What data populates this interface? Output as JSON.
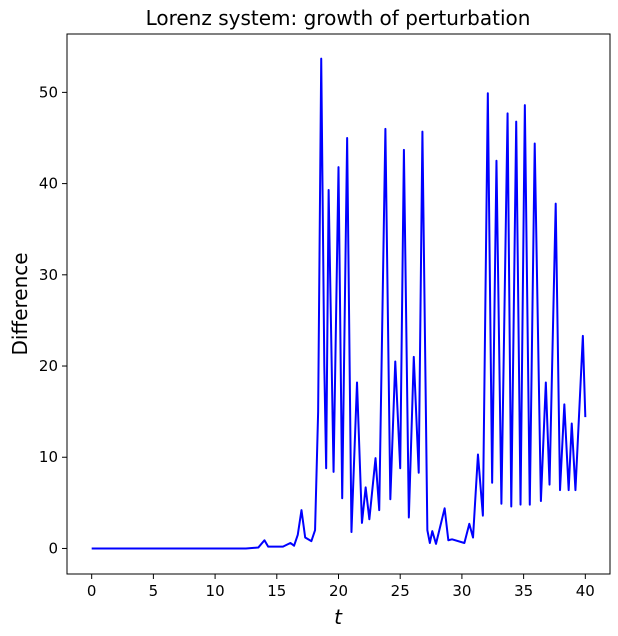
{
  "chart_data": {
    "type": "line",
    "title": "Lorenz system: growth of perturbation",
    "xlabel": "t",
    "ylabel": "Difference",
    "color": "#0000ff",
    "x": [
      0,
      12.5,
      13.5,
      14.0,
      14.3,
      15.5,
      16.1,
      16.4,
      16.7,
      17.0,
      17.3,
      17.8,
      18.1,
      18.35,
      18.6,
      18.85,
      19.0,
      19.2,
      19.45,
      19.6,
      20.0,
      20.3,
      20.7,
      21.05,
      21.5,
      21.9,
      22.2,
      22.5,
      23.0,
      23.3,
      23.8,
      24.2,
      24.6,
      25.0,
      25.3,
      25.7,
      26.1,
      26.5,
      26.8,
      27.2,
      27.4,
      27.6,
      27.9,
      28.6,
      28.9,
      29.2,
      30.2,
      30.6,
      30.9,
      31.3,
      31.7,
      32.1,
      32.45,
      32.8,
      33.2,
      33.7,
      34.0,
      34.4,
      34.75,
      35.1,
      35.5,
      35.9,
      36.4,
      36.8,
      37.1,
      37.6,
      37.95,
      38.3,
      38.65,
      38.9,
      39.2,
      39.8,
      40.0
    ],
    "values": [
      0,
      0,
      0.1,
      0.9,
      0.2,
      0.2,
      0.6,
      0.3,
      1.5,
      4.2,
      1.2,
      0.8,
      2,
      15,
      53.7,
      20,
      8.8,
      39.3,
      20,
      8.4,
      41.8,
      5.5,
      45.0,
      1.8,
      18.2,
      2.8,
      6.7,
      3.2,
      9.9,
      4.2,
      46.0,
      5.4,
      20.5,
      8.8,
      43.7,
      3.4,
      21.0,
      8.3,
      45.7,
      2.0,
      0.6,
      1.9,
      0.5,
      4.4,
      0.9,
      1.0,
      0.6,
      2.7,
      1.2,
      10.3,
      3.6,
      49.9,
      7.2,
      42.5,
      4.9,
      47.7,
      4.6,
      46.8,
      4.8,
      48.6,
      4.8,
      44.4,
      5.2,
      18.2,
      7.0,
      37.8,
      6.4,
      15.8,
      6.4,
      13.7,
      6.4,
      23.3,
      14.4
    ],
    "xlim": [
      -2,
      42
    ],
    "ylim": [
      -2.8,
      56.4
    ],
    "xticks": [
      0,
      5,
      10,
      15,
      20,
      25,
      30,
      35,
      40
    ],
    "yticks": [
      0,
      10,
      20,
      30,
      40,
      50
    ]
  }
}
